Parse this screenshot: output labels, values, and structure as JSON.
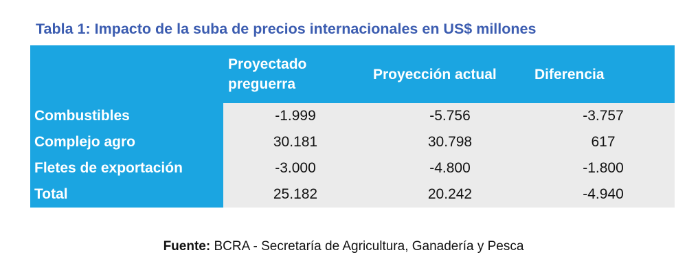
{
  "title": "Tabla 1: Impacto de la suba de precios internacionales en US$ millones",
  "table": {
    "columns": [
      "Proyectado preguerra",
      "Proyección actual",
      "Diferencia"
    ],
    "rows": [
      {
        "label": "Combustibles",
        "cells": [
          "-1.999",
          "-5.756",
          "-3.757"
        ]
      },
      {
        "label": "Complejo agro",
        "cells": [
          "30.181",
          "30.798",
          "617"
        ]
      },
      {
        "label": "Fletes de exportación",
        "cells": [
          "-3.000",
          "-4.800",
          "-1.800"
        ]
      },
      {
        "label": "Total",
        "cells": [
          "25.182",
          "20.242",
          "-4.940"
        ]
      }
    ]
  },
  "source": {
    "label": "Fuente:",
    "text": "BCRA - Secretaría de Agricultura, Ganadería y Pesca"
  }
}
